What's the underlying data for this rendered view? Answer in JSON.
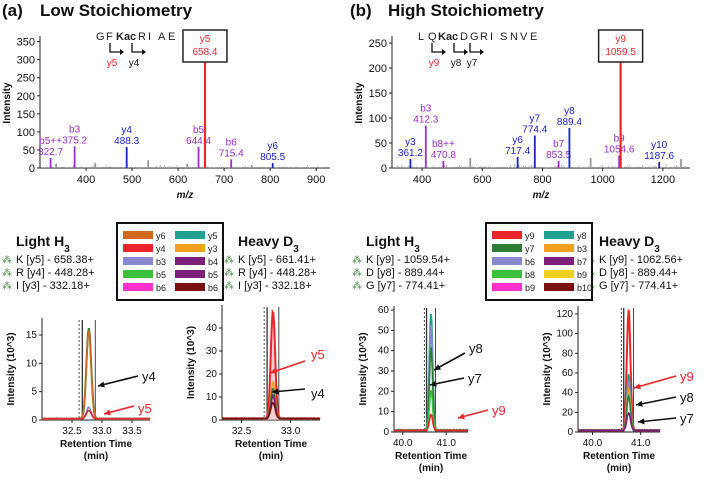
{
  "panels": [
    {
      "letter": "(a)",
      "title": "Low Stoichiometry"
    },
    {
      "letter": "(b)",
      "title": "High Stoichiometry"
    }
  ],
  "colors": {
    "red": "#e8262b",
    "purple": "#9b2fc9",
    "blue": "#1a22c0",
    "gray": "#999999"
  },
  "chart_data": [
    {
      "id": "spectrumA",
      "type": "bar",
      "ylabel": "Intensity",
      "xlabel": "m/z",
      "xlim": [
        300,
        930
      ],
      "ylim": [
        0,
        360
      ],
      "xticks": [
        400,
        500,
        600,
        700,
        800,
        900
      ],
      "yticks": [
        0,
        50,
        100,
        150,
        200,
        250,
        300,
        350
      ],
      "sequence": [
        "G",
        "F",
        "Kac",
        "R",
        "I",
        "A",
        "E"
      ],
      "fragment_marks": [
        "y5",
        "y4"
      ],
      "boxed_label": {
        "ion": "y5",
        "mz": "658.4"
      },
      "peaks": [
        {
          "mz": 323,
          "y": 28,
          "ion": "b5++",
          "label_mz": "322.7",
          "color": "purple"
        },
        {
          "mz": 335,
          "y": 12,
          "color": "gray"
        },
        {
          "mz": 375.2,
          "y": 60,
          "ion": "b3",
          "label_mz": "375.2",
          "color": "purple"
        },
        {
          "mz": 420,
          "y": 14,
          "color": "gray"
        },
        {
          "mz": 488.3,
          "y": 58,
          "ion": "y4",
          "label_mz": "488.3",
          "color": "blue"
        },
        {
          "mz": 535,
          "y": 22,
          "color": "gray"
        },
        {
          "mz": 620,
          "y": 12,
          "color": "gray"
        },
        {
          "mz": 644.4,
          "y": 58,
          "ion": "b5",
          "label_mz": "644.4",
          "color": "purple"
        },
        {
          "mz": 658.4,
          "y": 325,
          "color": "red"
        },
        {
          "mz": 715.4,
          "y": 24,
          "ion": "b6",
          "label_mz": "715.4",
          "color": "purple"
        },
        {
          "mz": 760,
          "y": 8,
          "color": "gray"
        },
        {
          "mz": 805.5,
          "y": 14,
          "ion": "y6",
          "label_mz": "805.5",
          "color": "blue"
        }
      ]
    },
    {
      "id": "spectrumB",
      "type": "bar",
      "ylabel": "Intensity",
      "xlabel": "m/z",
      "xlim": [
        300,
        1290
      ],
      "ylim": [
        0,
        260
      ],
      "xticks": [
        400,
        600,
        800,
        1000,
        1200
      ],
      "yticks": [
        0,
        50,
        100,
        150,
        200,
        250
      ],
      "sequence": [
        "L",
        "Q",
        "Kac",
        "D",
        "G",
        "R",
        "I",
        "S",
        "N",
        "V",
        "E"
      ],
      "fragment_marks": [
        "y9",
        "y8",
        "y7"
      ],
      "boxed_label": {
        "ion": "y9",
        "mz": "1059.5"
      },
      "peaks": [
        {
          "mz": 361.2,
          "y": 18,
          "ion": "y3",
          "label_mz": "361.2",
          "color": "blue"
        },
        {
          "mz": 412.3,
          "y": 85,
          "ion": "b3",
          "label_mz": "412.3",
          "color": "purple"
        },
        {
          "mz": 470.8,
          "y": 14,
          "ion": "b8++",
          "label_mz": "470.8",
          "color": "purple"
        },
        {
          "mz": 560,
          "y": 20,
          "color": "gray"
        },
        {
          "mz": 717.4,
          "y": 22,
          "ion": "y6",
          "label_mz": "717.4",
          "color": "blue"
        },
        {
          "mz": 774.4,
          "y": 65,
          "ion": "y7",
          "label_mz": "774.4",
          "color": "blue"
        },
        {
          "mz": 853.5,
          "y": 14,
          "ion": "b7",
          "label_mz": "853.5",
          "color": "purple"
        },
        {
          "mz": 889.4,
          "y": 80,
          "ion": "y8",
          "label_mz": "889.4",
          "color": "blue"
        },
        {
          "mz": 960,
          "y": 20,
          "color": "gray"
        },
        {
          "mz": 1054.6,
          "y": 25,
          "ion": "b9",
          "label_mz": "1054.6",
          "color": "purple"
        },
        {
          "mz": 1059.5,
          "y": 232,
          "color": "red"
        },
        {
          "mz": 1187.6,
          "y": 12,
          "ion": "y10",
          "label_mz": "1187.6",
          "color": "blue"
        },
        {
          "mz": 1260,
          "y": 18,
          "color": "gray"
        }
      ]
    },
    {
      "id": "xicLightA",
      "type": "line",
      "title": "Light H3",
      "title_sub": "3",
      "ylabel": "Intensity (10^3)",
      "xlabel": "Retention Time (min)",
      "xlim": [
        32.0,
        33.8
      ],
      "ylim": [
        0,
        18
      ],
      "xticks": [
        32.5,
        33.0,
        33.5
      ],
      "yticks": [
        0,
        5,
        10,
        15
      ],
      "transitions": [
        "K [y5] - 658.38+",
        "R [y4] - 448.28+",
        "I [y3] -  332.18+"
      ],
      "annotations": [
        {
          "text": "y4",
          "color": "black"
        },
        {
          "text": "y5",
          "color": "red"
        }
      ],
      "series": [
        {
          "name": "y4",
          "color": "#2e7d32",
          "peak_rt": 32.78,
          "height": 16
        },
        {
          "name": "y6",
          "color": "#d2691e",
          "peak_rt": 32.78,
          "height": 15.5
        },
        {
          "name": "b3",
          "color": "#8888cc",
          "peak_rt": 32.78,
          "height": 2
        },
        {
          "name": "y5",
          "color": "#e8262b",
          "peak_rt": 32.78,
          "height": 1.5
        }
      ]
    },
    {
      "id": "xicHeavyA",
      "type": "line",
      "title": "Heavy D3",
      "title_sub": "3",
      "ylabel": "Intensity (10^3)",
      "xlabel": "Retention Time (min)",
      "xlim": [
        32.3,
        33.3
      ],
      "ylim": [
        0,
        50
      ],
      "xticks": [
        32.5,
        33.0
      ],
      "yticks": [
        0,
        10,
        20,
        30,
        40
      ],
      "transitions": [
        "K [y5] - 661.41+",
        "R [y4] - 448.28+",
        "I [y3] -  332.18+"
      ],
      "annotations": [
        {
          "text": "y5",
          "color": "red"
        },
        {
          "text": "y4",
          "color": "black"
        }
      ],
      "series": [
        {
          "name": "y5",
          "color": "#e8262b",
          "peak_rt": 32.82,
          "height": 47
        },
        {
          "name": "y3",
          "color": "#f0a020",
          "peak_rt": 32.82,
          "height": 16
        },
        {
          "name": "y4",
          "color": "#2e7d32",
          "peak_rt": 32.82,
          "height": 13
        },
        {
          "name": "b4",
          "color": "#7a1f7a",
          "peak_rt": 32.82,
          "height": 10
        },
        {
          "name": "b6",
          "color": "#7a1010",
          "peak_rt": 32.82,
          "height": 7
        }
      ]
    },
    {
      "id": "xicLightB",
      "type": "line",
      "title": "Light H3",
      "title_sub": "3",
      "ylabel": "Intensity (10^3)",
      "xlabel": "Retention Time (min)",
      "xlim": [
        39.8,
        41.5
      ],
      "ylim": [
        0,
        62
      ],
      "xticks": [
        40.0,
        41.0
      ],
      "yticks": [
        0,
        10,
        20,
        30,
        40,
        50,
        60
      ],
      "transitions": [
        "K [y9] - 1059.54+",
        "D [y8] - 889.44+",
        "G [y7] - 774.41+"
      ],
      "annotations": [
        {
          "text": "y8",
          "color": "black"
        },
        {
          "text": "y7",
          "color": "black"
        },
        {
          "text": "y9",
          "color": "red"
        }
      ],
      "series": [
        {
          "name": "y8",
          "color": "#20a090",
          "peak_rt": 40.65,
          "height": 57
        },
        {
          "name": "b6",
          "color": "#8888cc",
          "peak_rt": 40.65,
          "height": 52
        },
        {
          "name": "y7",
          "color": "#2e7d32",
          "peak_rt": 40.65,
          "height": 41
        },
        {
          "name": "b8",
          "color": "#3cc03c",
          "peak_rt": 40.65,
          "height": 20
        },
        {
          "name": "y9",
          "color": "#e8262b",
          "peak_rt": 40.65,
          "height": 8
        }
      ]
    },
    {
      "id": "xicHeavyB",
      "type": "line",
      "title": "Heavy D3",
      "title_sub": "3",
      "ylabel": "Intensity (10^3)",
      "xlabel": "Retention Time (min)",
      "xlim": [
        39.7,
        41.4
      ],
      "ylim": [
        0,
        128
      ],
      "xticks": [
        40,
        41
      ],
      "yticks": [
        0,
        20,
        40,
        60,
        80,
        100,
        120
      ],
      "transitions": [
        "K [y9] - 1062.56+",
        "D [y8] - 889.44+",
        "G [y7] - 774.41+"
      ],
      "annotations": [
        {
          "text": "y9",
          "color": "red"
        },
        {
          "text": "y8",
          "color": "black"
        },
        {
          "text": "y7",
          "color": "black"
        }
      ],
      "series": [
        {
          "name": "y9",
          "color": "#e8262b",
          "peak_rt": 40.75,
          "height": 123
        },
        {
          "name": "y8",
          "color": "#20a090",
          "peak_rt": 40.75,
          "height": 57
        },
        {
          "name": "b6",
          "color": "#8888cc",
          "peak_rt": 40.75,
          "height": 50
        },
        {
          "name": "b3",
          "color": "#f0a020",
          "peak_rt": 40.75,
          "height": 42
        },
        {
          "name": "y7",
          "color": "#2e7d32",
          "peak_rt": 40.75,
          "height": 35
        },
        {
          "name": "b7",
          "color": "#7a1f7a",
          "peak_rt": 40.75,
          "height": 18
        }
      ]
    }
  ],
  "legends": [
    {
      "id": "legendA",
      "rows": [
        [
          "y6",
          "y5"
        ],
        [
          "y4",
          "y3"
        ],
        [
          "b3",
          "b4"
        ],
        [
          "b5",
          "b5"
        ],
        [
          "b6",
          "b6"
        ]
      ],
      "colors": [
        [
          "#d2691e",
          "#20a090"
        ],
        [
          "#e8262b",
          "#f0a020"
        ],
        [
          "#8888cc",
          "#7a1f7a"
        ],
        [
          "#3cc03c",
          "#7a1f7a"
        ],
        [
          "#ff33cc",
          "#7a1010"
        ]
      ]
    },
    {
      "id": "legendB",
      "rows": [
        [
          "y9",
          "y8"
        ],
        [
          "y7",
          "b3"
        ],
        [
          "b6",
          "b7"
        ],
        [
          "b8",
          "b9"
        ],
        [
          "b9",
          "b10"
        ]
      ],
      "colors": [
        [
          "#e8262b",
          "#20a090"
        ],
        [
          "#2e7d32",
          "#f0a020"
        ],
        [
          "#8888cc",
          "#7a1f7a"
        ],
        [
          "#3cc03c",
          "#f0d020"
        ],
        [
          "#ff33cc",
          "#7a1010"
        ]
      ]
    }
  ]
}
